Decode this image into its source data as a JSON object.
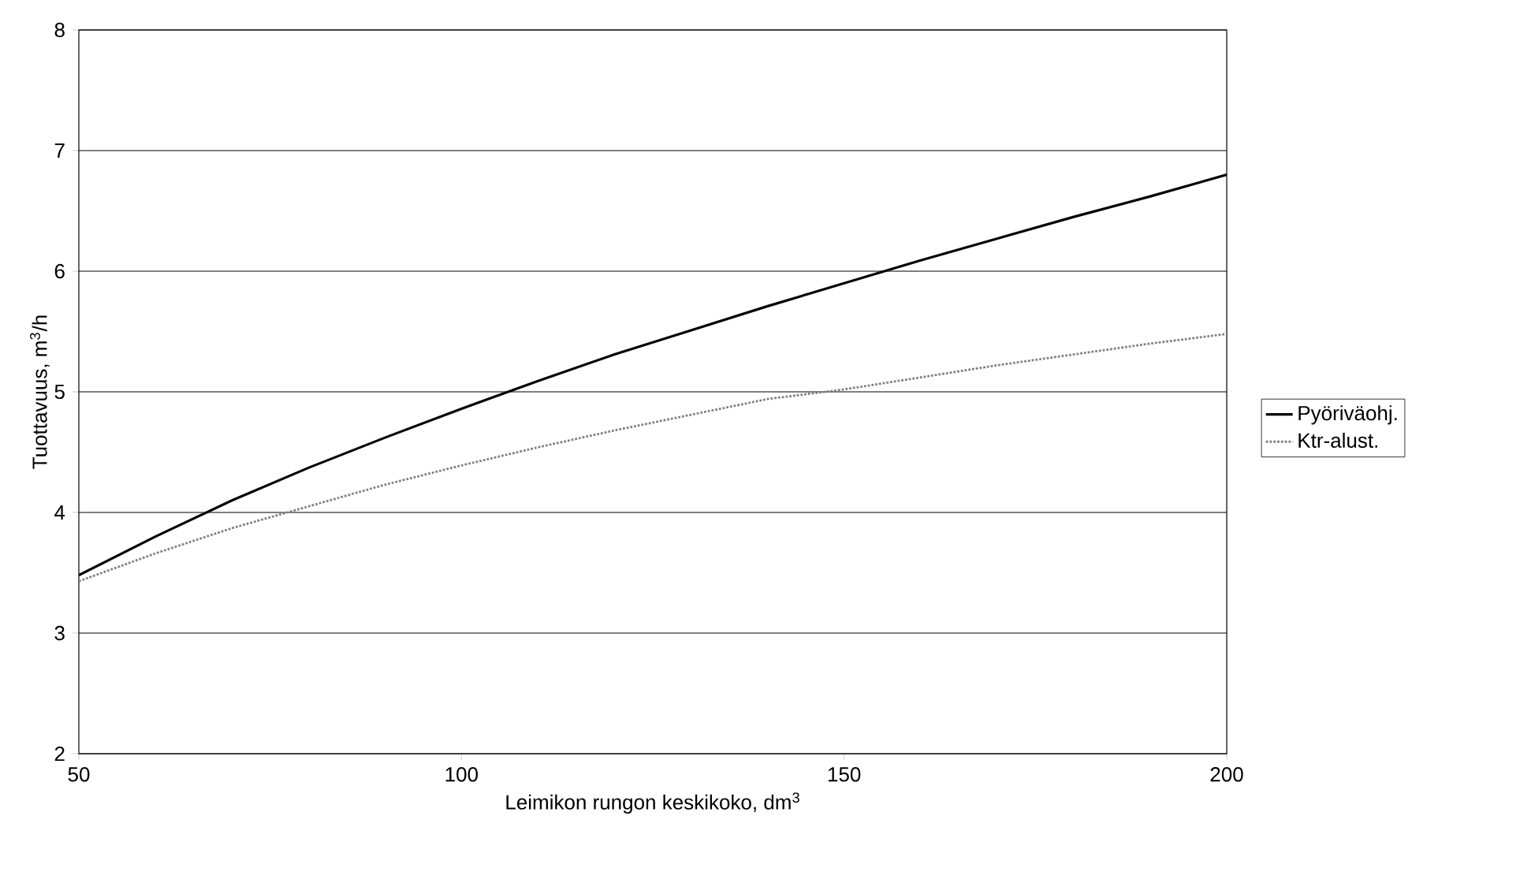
{
  "chart_data": {
    "type": "line",
    "xlabel": "Leimikon rungon keskikoko, dm$^{3}$",
    "ylabel": "Tuottavuus, m$^{3}$/h",
    "x": [
      50,
      60,
      70,
      80,
      90,
      100,
      110,
      120,
      130,
      140,
      150,
      160,
      170,
      180,
      190,
      200
    ],
    "series": [
      {
        "name": "Pyöriväohj.",
        "color": "#000000",
        "line_style": "solid",
        "values": [
          3.48,
          3.8,
          4.1,
          4.37,
          4.62,
          4.86,
          5.09,
          5.31,
          5.51,
          5.71,
          5.9,
          6.09,
          6.27,
          6.45,
          6.62,
          6.8
        ]
      },
      {
        "name": "Ktr-alust.",
        "color": "#808080",
        "line_style": "dotted",
        "values": [
          3.43,
          3.66,
          3.87,
          4.05,
          4.23,
          4.39,
          4.54,
          4.68,
          4.81,
          4.94,
          5.02,
          5.12,
          5.22,
          5.31,
          5.4,
          5.48
        ]
      }
    ],
    "xlim": [
      50,
      200
    ],
    "ylim": [
      2,
      8
    ],
    "xticks": [
      50,
      100,
      150,
      200
    ],
    "yticks": [
      2,
      3,
      4,
      5,
      6,
      7,
      8
    ],
    "grid": "y",
    "legend": "right"
  }
}
